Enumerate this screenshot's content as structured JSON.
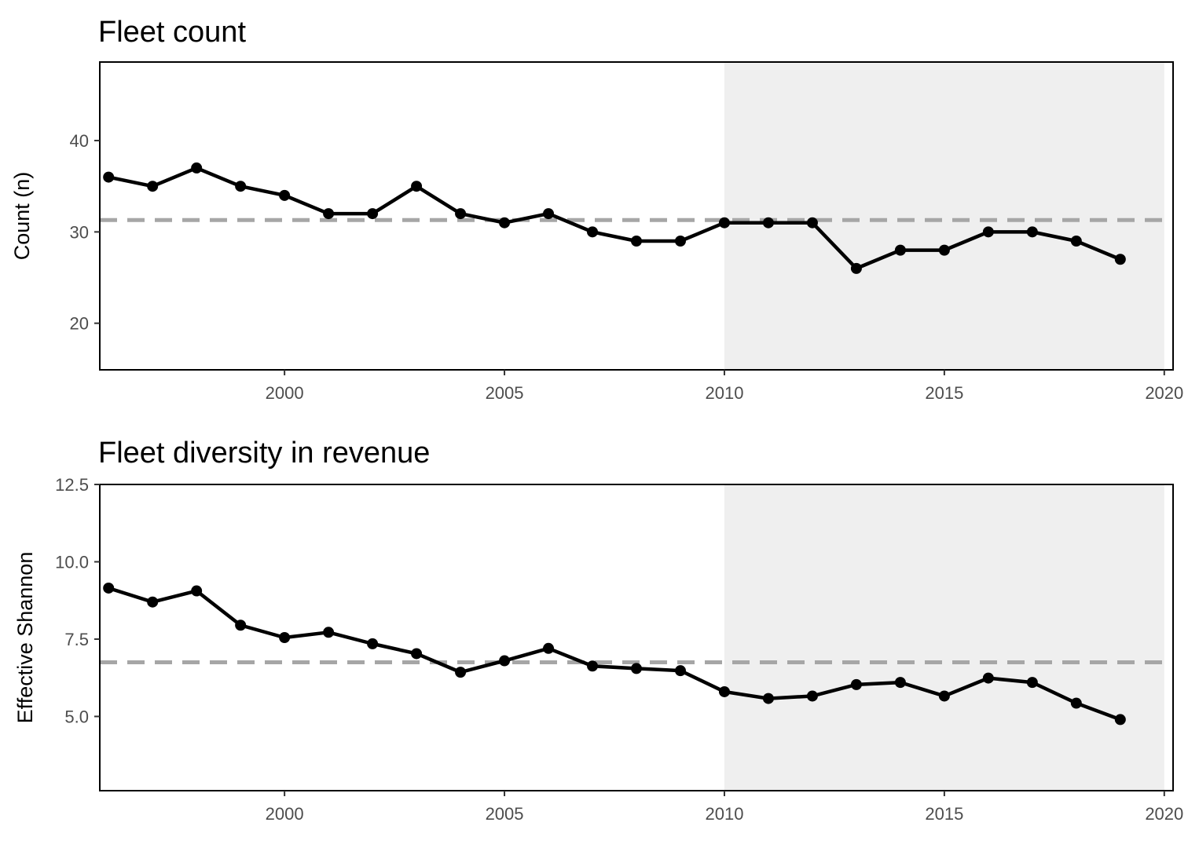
{
  "chart_data": [
    {
      "type": "line",
      "title": "Fleet count",
      "xlabel": "",
      "ylabel": "Count (n)",
      "xlim": [
        1995.8,
        2020.2
      ],
      "ylim": [
        14.9,
        48.6
      ],
      "x_ticks": [
        2000,
        2005,
        2010,
        2015,
        2020
      ],
      "y_ticks": [
        20,
        30,
        40
      ],
      "y_tick_labels": [
        "20",
        "30",
        "40"
      ],
      "x": [
        1996,
        1997,
        1998,
        1999,
        2000,
        2001,
        2002,
        2003,
        2004,
        2005,
        2006,
        2007,
        2008,
        2009,
        2010,
        2011,
        2012,
        2013,
        2014,
        2015,
        2016,
        2017,
        2018,
        2019
      ],
      "series": [
        {
          "values": [
            36,
            35,
            37,
            35,
            34,
            32,
            32,
            35,
            32,
            31,
            32,
            30,
            29,
            29,
            31,
            31,
            31,
            26,
            28,
            28,
            30,
            30,
            29,
            27
          ]
        }
      ],
      "mean_line": 31.3,
      "shaded_region": [
        2010,
        2020
      ],
      "grid": false,
      "colors": {
        "line": "#000000",
        "mean_line": "#a6a6a6",
        "shade": "#efefef"
      }
    },
    {
      "type": "line",
      "title": "Fleet diversity in revenue",
      "xlabel": "",
      "ylabel": "Effective Shannon",
      "xlim": [
        1995.8,
        2020.2
      ],
      "ylim": [
        2.6,
        12.5
      ],
      "x_ticks": [
        2000,
        2005,
        2010,
        2015,
        2020
      ],
      "y_ticks": [
        5.0,
        7.5,
        10.0,
        12.5
      ],
      "y_tick_labels": [
        "5.0",
        "7.5",
        "10.0",
        "12.5"
      ],
      "x": [
        1996,
        1997,
        1998,
        1999,
        2000,
        2001,
        2002,
        2003,
        2004,
        2005,
        2006,
        2007,
        2008,
        2009,
        2010,
        2011,
        2012,
        2013,
        2014,
        2015,
        2016,
        2017,
        2018,
        2019
      ],
      "series": [
        {
          "values": [
            9.15,
            8.7,
            9.06,
            7.95,
            7.55,
            7.72,
            7.35,
            7.03,
            6.43,
            6.8,
            7.2,
            6.63,
            6.55,
            6.48,
            5.8,
            5.58,
            5.66,
            6.03,
            6.1,
            5.66,
            6.24,
            6.1,
            5.43,
            4.9
          ]
        }
      ],
      "mean_line": 6.75,
      "shaded_region": [
        2010,
        2020
      ],
      "grid": false,
      "colors": {
        "line": "#000000",
        "mean_line": "#a6a6a6",
        "shade": "#efefef"
      }
    }
  ]
}
